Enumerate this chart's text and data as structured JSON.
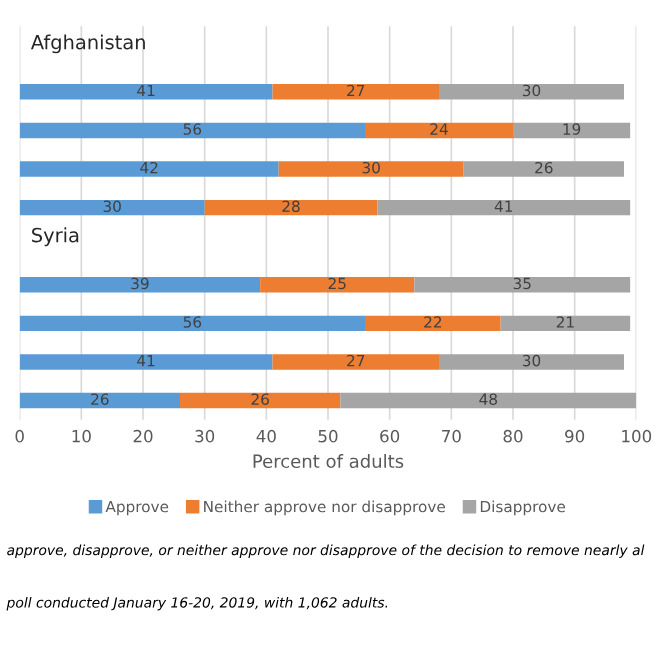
{
  "chart_data": {
    "type": "bar",
    "orientation": "horizontal",
    "stacked": true,
    "categories": [
      "Afghanistan",
      null,
      null,
      null,
      null,
      "Syria",
      null,
      null,
      null,
      null
    ],
    "xlim": [
      0,
      100
    ],
    "xticks": [
      0,
      10,
      20,
      30,
      40,
      50,
      60,
      70,
      80,
      90,
      100
    ],
    "grid": "x",
    "data_labels": true,
    "legend": "bottom",
    "xlabel": "Percent of adults",
    "series": [
      {
        "name": "Approve",
        "color": "#5b9bd5",
        "values": [
          null,
          41,
          56,
          42,
          30,
          null,
          39,
          56,
          41,
          26
        ]
      },
      {
        "name": "Neither approve nor disapprove",
        "color": "#ed7d31",
        "values": [
          null,
          27,
          24,
          30,
          28,
          null,
          25,
          22,
          27,
          26
        ]
      },
      {
        "name": "Disapprove",
        "color": "#a5a5a5",
        "values": [
          null,
          30,
          19,
          26,
          41,
          null,
          35,
          21,
          30,
          48
        ]
      }
    ],
    "annotations": [
      "approve, disapprove, or neither approve nor disapprove of the decision to remove nearly al",
      "poll conducted January 16-20, 2019, with 1,062 adults."
    ]
  }
}
